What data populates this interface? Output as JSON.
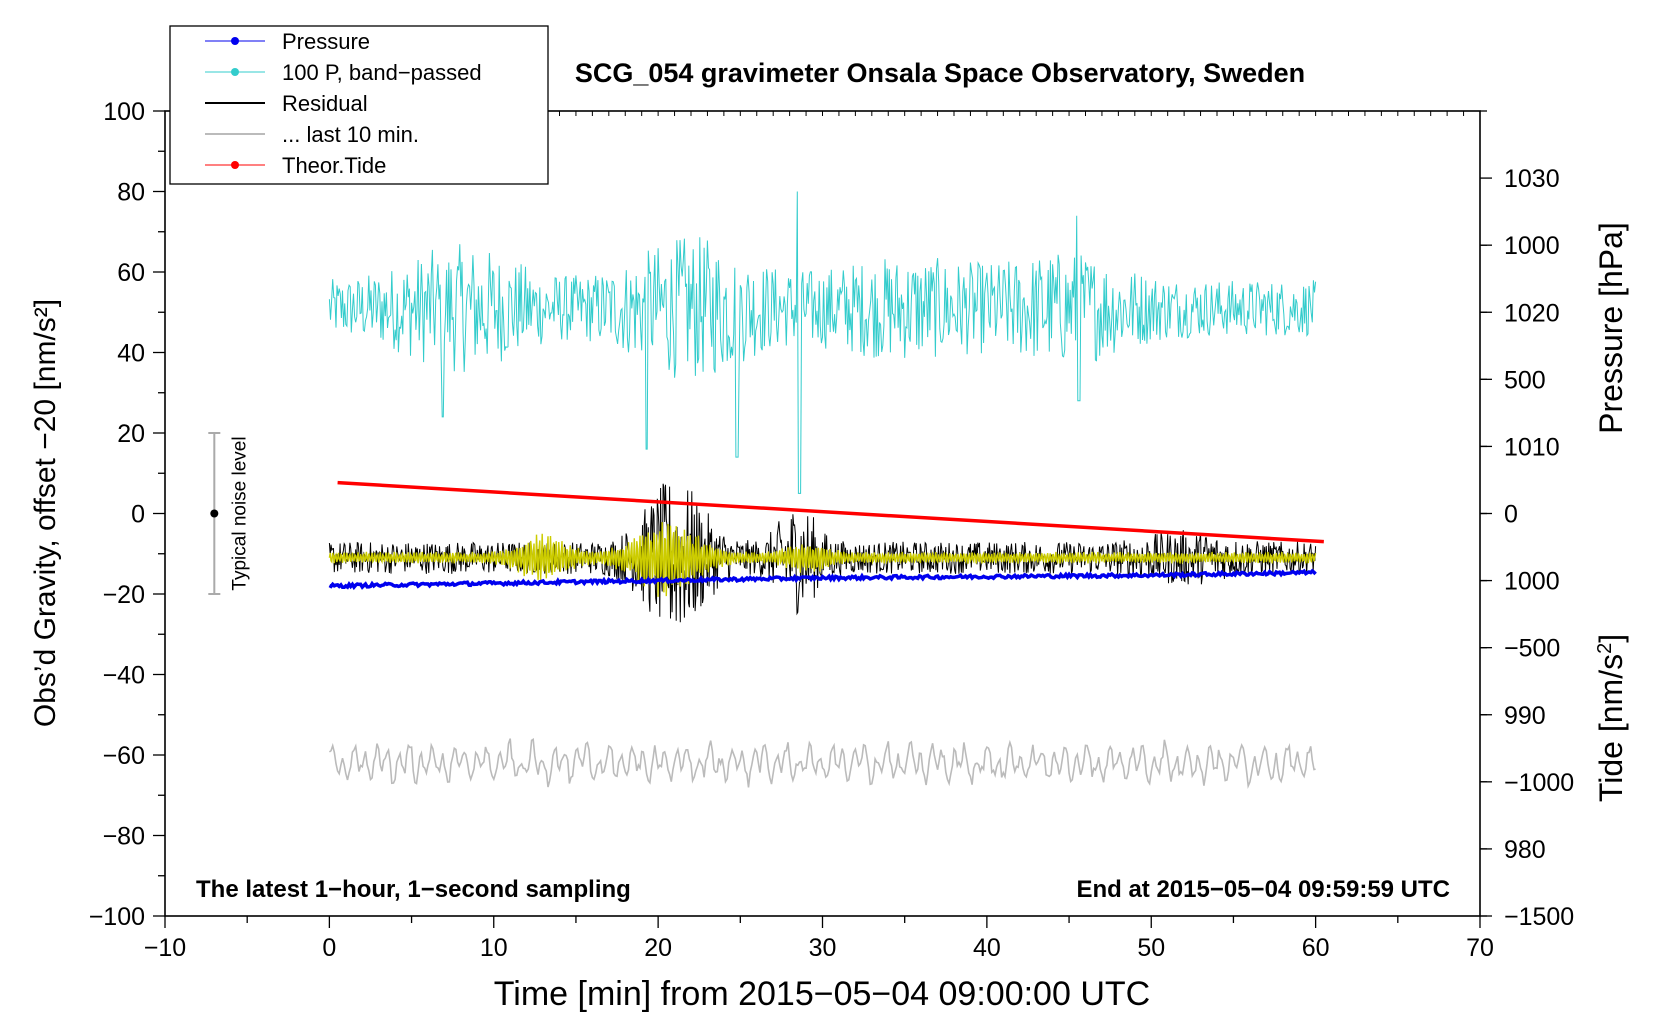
{
  "chart_data": {
    "type": "line",
    "title": "SCG_054 gravimeter Onsala Space Observatory, Sweden",
    "xlabel": "Time [min] from 2015−05−04 09:00:00 UTC",
    "ylabel_left": "Obs’d Gravity, offset −20 [nm/s²]",
    "ylabel_pressure_main": "Pressure [hPa]",
    "ylabel_tide_main": "Tide [nm/s",
    "ylabel_tide_sup": "2",
    "ylabel_tide_close": "]",
    "xlim": [
      -10,
      70
    ],
    "ylim_left": [
      -100,
      100
    ],
    "ylim_pressure": [
      975,
      1035
    ],
    "ylim_tide": [
      -1500,
      1500
    ],
    "x_ticks": [
      {
        "value": -10,
        "label": "−10"
      },
      {
        "value": 0,
        "label": "0"
      },
      {
        "value": 10,
        "label": "10"
      },
      {
        "value": 20,
        "label": "20"
      },
      {
        "value": 30,
        "label": "30"
      },
      {
        "value": 40,
        "label": "40"
      },
      {
        "value": 50,
        "label": "50"
      },
      {
        "value": 60,
        "label": "60"
      },
      {
        "value": 70,
        "label": "70"
      }
    ],
    "y_ticks_left": [
      {
        "value": 100,
        "label": "100"
      },
      {
        "value": 80,
        "label": "80"
      },
      {
        "value": 60,
        "label": "60"
      },
      {
        "value": 40,
        "label": "40"
      },
      {
        "value": 20,
        "label": "20"
      },
      {
        "value": 0,
        "label": "0"
      },
      {
        "value": -20,
        "label": "−20"
      },
      {
        "value": -40,
        "label": "−40"
      },
      {
        "value": -60,
        "label": "−60"
      },
      {
        "value": -80,
        "label": "−80"
      },
      {
        "value": -100,
        "label": "−100"
      }
    ],
    "y_ticks_pressure": [
      {
        "value": 1030,
        "label": "1030"
      },
      {
        "value": 1020,
        "label": "1020"
      },
      {
        "value": 1010,
        "label": "1010"
      },
      {
        "value": 1000,
        "label": "1000"
      },
      {
        "value": 990,
        "label": "990"
      },
      {
        "value": 980,
        "label": "980"
      }
    ],
    "y_ticks_tide": [
      {
        "value": 1000,
        "label": "1000"
      },
      {
        "value": 500,
        "label": "500"
      },
      {
        "value": 0,
        "label": "0"
      },
      {
        "value": -500,
        "label": "−500"
      },
      {
        "value": -1000,
        "label": "−1000"
      },
      {
        "value": -1500,
        "label": "−1500"
      }
    ],
    "series": [
      {
        "name": "Pressure",
        "color": "#0000ee",
        "axis": "pressure",
        "x": [
          0,
          10,
          20,
          30,
          40,
          50,
          60
        ],
        "values": [
          999.6,
          999.8,
          1000.0,
          1000.2,
          1000.3,
          1000.4,
          1000.6
        ]
      },
      {
        "name": "100 P, band−passed",
        "color": "#33cccc",
        "axis": "left",
        "x_range": [
          0,
          60
        ],
        "baseline": 51,
        "notes": "high-frequency noise; spikes near 28.5 min (to 80) and 45.5 min (to 74)"
      },
      {
        "name": "Residual",
        "color": "#000000",
        "axis": "left",
        "x_range": [
          0,
          60
        ],
        "baseline": -11,
        "notes": "bursts near 19–23 min (−33 to 13) and 28 min (−29 to 7)"
      },
      {
        "name": "... last 10 min.",
        "color": "#bbbbbb",
        "axis": "left",
        "x_range": [
          0,
          60
        ],
        "baseline": -62
      },
      {
        "name": "Theor.Tide",
        "color": "#ff0000",
        "axis": "tide",
        "x": [
          0.5,
          60.5
        ],
        "values": [
          115,
          -105
        ]
      }
    ],
    "legend_position": "top-left",
    "noise_bar": {
      "label": "Typical noise level",
      "x": -7,
      "center": 0,
      "low": -20,
      "high": 20
    },
    "annotation_left": "The latest 1−hour, 1−second sampling",
    "annotation_right": "End at 2015−05−04 09:59:59 UTC"
  }
}
